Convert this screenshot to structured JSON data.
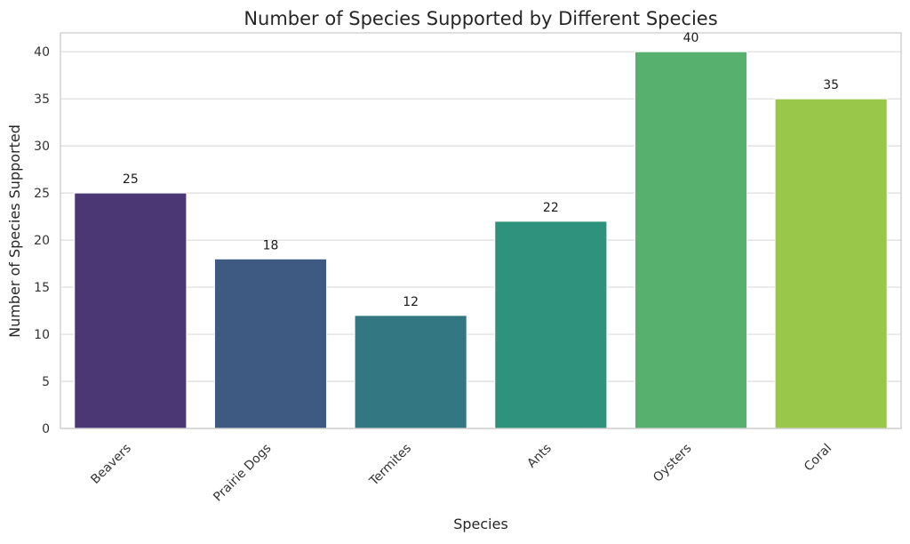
{
  "chart_data": {
    "type": "bar",
    "title": "Number of Species Supported by Different Species",
    "xlabel": "Species",
    "ylabel": "Number of Species Supported",
    "categories": [
      "Beavers",
      "Prairie Dogs",
      "Termites",
      "Ants",
      "Oysters",
      "Coral"
    ],
    "values": [
      25,
      18,
      12,
      22,
      40,
      35
    ],
    "colors": [
      "#4a3774",
      "#3e5a83",
      "#337783",
      "#2e927c",
      "#58b06f",
      "#99c74a"
    ],
    "ylim": [
      0,
      42
    ],
    "yticks": [
      "0",
      "5",
      "10",
      "15",
      "20",
      "25",
      "30",
      "35",
      "40"
    ],
    "grid": "horizontal",
    "data_labels": [
      "25",
      "18",
      "12",
      "22",
      "40",
      "35"
    ]
  }
}
